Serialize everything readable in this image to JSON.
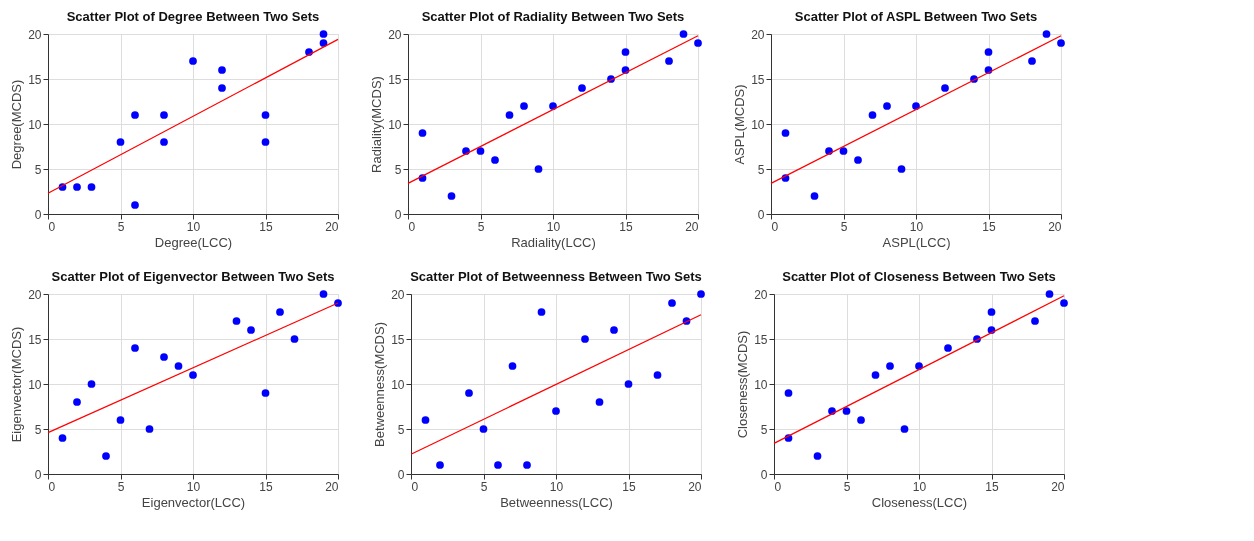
{
  "chart_data": [
    {
      "type": "scatter",
      "title": "Scatter Plot of Degree Between Two Sets",
      "xlabel": "Degree(LCC)",
      "ylabel": "Degree(MCDS)",
      "xlim": [
        0,
        20
      ],
      "ylim": [
        0,
        20
      ],
      "xticks": [
        0,
        5,
        10,
        15,
        20
      ],
      "yticks": [
        0,
        5,
        10,
        15,
        20
      ],
      "grid": true,
      "series": [
        {
          "marker": "circle",
          "color": "#0000ff",
          "x": [
            1,
            2,
            3,
            5,
            6,
            6,
            8,
            8,
            10,
            12,
            12,
            15,
            15,
            18,
            19,
            19
          ],
          "values": [
            3,
            3,
            3,
            8,
            11,
            1,
            11,
            8,
            17,
            16,
            14,
            11,
            8,
            18,
            20,
            19
          ]
        },
        {
          "type": "line",
          "color": "#ff0000",
          "x": [
            0,
            20
          ],
          "values": [
            2.3,
            19.4
          ]
        }
      ]
    },
    {
      "type": "scatter",
      "title": "Scatter Plot of Radiality Between Two Sets",
      "xlabel": "Radiality(LCC)",
      "ylabel": "Radiality(MCDS)",
      "xlim": [
        0,
        20
      ],
      "ylim": [
        0,
        20
      ],
      "xticks": [
        0,
        5,
        10,
        15,
        20
      ],
      "yticks": [
        0,
        5,
        10,
        15,
        20
      ],
      "grid": true,
      "series": [
        {
          "marker": "circle",
          "color": "#0000ff",
          "x": [
            1,
            1,
            3,
            4,
            5,
            6,
            7,
            8,
            9,
            10,
            12,
            14,
            15,
            15,
            18,
            19,
            20
          ],
          "values": [
            9,
            4,
            2,
            7,
            7,
            6,
            11,
            12,
            5,
            12,
            14,
            15,
            18,
            16,
            17,
            20,
            19
          ]
        },
        {
          "type": "line",
          "color": "#ff0000",
          "x": [
            0,
            20
          ],
          "values": [
            3.4,
            19.8
          ]
        }
      ]
    },
    {
      "type": "scatter",
      "title": "Scatter Plot of ASPL Between Two Sets",
      "xlabel": "ASPL(LCC)",
      "ylabel": "ASPL(MCDS)",
      "xlim": [
        0,
        20
      ],
      "ylim": [
        0,
        20
      ],
      "xticks": [
        0,
        5,
        10,
        15,
        20
      ],
      "yticks": [
        0,
        5,
        10,
        15,
        20
      ],
      "grid": true,
      "series": [
        {
          "marker": "circle",
          "color": "#0000ff",
          "x": [
            1,
            1,
            3,
            4,
            5,
            6,
            7,
            8,
            9,
            10,
            12,
            14,
            15,
            15,
            18,
            19,
            20
          ],
          "values": [
            9,
            4,
            2,
            7,
            7,
            6,
            11,
            12,
            5,
            12,
            14,
            15,
            18,
            16,
            17,
            20,
            19
          ]
        },
        {
          "type": "line",
          "color": "#ff0000",
          "x": [
            0,
            20
          ],
          "values": [
            3.4,
            19.8
          ]
        }
      ]
    },
    {
      "type": "scatter",
      "title": "Scatter Plot of Eigenvector Between Two Sets",
      "xlabel": "Eigenvector(LCC)",
      "ylabel": "Eigenvector(MCDS)",
      "xlim": [
        0,
        20
      ],
      "ylim": [
        0,
        20
      ],
      "xticks": [
        0,
        5,
        10,
        15,
        20
      ],
      "yticks": [
        0,
        5,
        10,
        15,
        20
      ],
      "grid": true,
      "series": [
        {
          "marker": "circle",
          "color": "#0000ff",
          "x": [
            1,
            2,
            3,
            4,
            5,
            6,
            7,
            8,
            9,
            10,
            13,
            14,
            15,
            16,
            17,
            19,
            20
          ],
          "values": [
            4,
            8,
            10,
            2,
            6,
            14,
            5,
            13,
            12,
            11,
            17,
            16,
            9,
            18,
            15,
            20,
            19
          ]
        },
        {
          "type": "line",
          "color": "#ff0000",
          "x": [
            0,
            20
          ],
          "values": [
            4.6,
            19
          ]
        }
      ]
    },
    {
      "type": "scatter",
      "title": "Scatter Plot of Betweenness Between Two Sets",
      "xlabel": "Betweenness(LCC)",
      "ylabel": "Betweenness(MCDS)",
      "xlim": [
        0,
        20
      ],
      "ylim": [
        0,
        20
      ],
      "xticks": [
        0,
        5,
        10,
        15,
        20
      ],
      "yticks": [
        0,
        5,
        10,
        15,
        20
      ],
      "grid": true,
      "series": [
        {
          "marker": "circle",
          "color": "#0000ff",
          "x": [
            1,
            2,
            4,
            5,
            6,
            7,
            8,
            9,
            10,
            12,
            13,
            14,
            15,
            17,
            18,
            19,
            20
          ],
          "values": [
            6,
            1,
            9,
            5,
            1,
            12,
            1,
            18,
            7,
            15,
            8,
            16,
            10,
            11,
            19,
            17,
            20
          ]
        },
        {
          "type": "line",
          "color": "#ff0000",
          "x": [
            0,
            20
          ],
          "values": [
            2.2,
            17.7
          ]
        }
      ]
    },
    {
      "type": "scatter",
      "title": "Scatter Plot of Closeness Between Two Sets",
      "xlabel": "Closeness(LCC)",
      "ylabel": "Closeness(MCDS)",
      "xlim": [
        0,
        20
      ],
      "ylim": [
        0,
        20
      ],
      "xticks": [
        0,
        5,
        10,
        15,
        20
      ],
      "yticks": [
        0,
        5,
        10,
        15,
        20
      ],
      "grid": true,
      "series": [
        {
          "marker": "circle",
          "color": "#0000ff",
          "x": [
            1,
            1,
            3,
            4,
            5,
            6,
            7,
            8,
            9,
            10,
            12,
            14,
            15,
            15,
            18,
            19,
            20
          ],
          "values": [
            9,
            4,
            2,
            7,
            7,
            6,
            11,
            12,
            5,
            12,
            14,
            15,
            18,
            16,
            17,
            20,
            19
          ]
        },
        {
          "type": "line",
          "color": "#ff0000",
          "x": [
            0,
            20
          ],
          "values": [
            3.4,
            19.8
          ]
        }
      ]
    }
  ]
}
